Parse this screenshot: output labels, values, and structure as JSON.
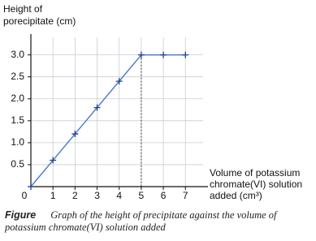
{
  "chart_data": {
    "type": "line",
    "ylabel": [
      "Height of",
      "porecipitate (cm)"
    ],
    "xlabel": [
      "Volume of potassium",
      "chromate(VI) solution",
      "added (cm³)"
    ],
    "x": [
      0,
      1,
      2,
      3,
      4,
      5,
      6,
      7
    ],
    "series": [
      {
        "color": "#4a78c8",
        "marker_color": "#1f3f8a",
        "values": [
          0,
          0.6,
          1.2,
          1.8,
          2.4,
          3.0,
          3.0,
          3.0
        ]
      }
    ],
    "xlim": [
      0,
      7.8
    ],
    "ylim": [
      0,
      3.4
    ],
    "xticks": [
      0,
      1,
      2,
      3,
      4,
      5,
      6,
      7
    ],
    "yticks": [
      0.5,
      {
        "value": 1,
        "label": "1.0"
      },
      1.5,
      {
        "value": 2,
        "label": "2.0"
      },
      2.5,
      {
        "value": 3,
        "label": "3.0"
      }
    ],
    "grid": true,
    "caption_label": "Figure",
    "caption": "Graph of the height of precipitate against the volume of potassium chromate(VI) solution added"
  }
}
